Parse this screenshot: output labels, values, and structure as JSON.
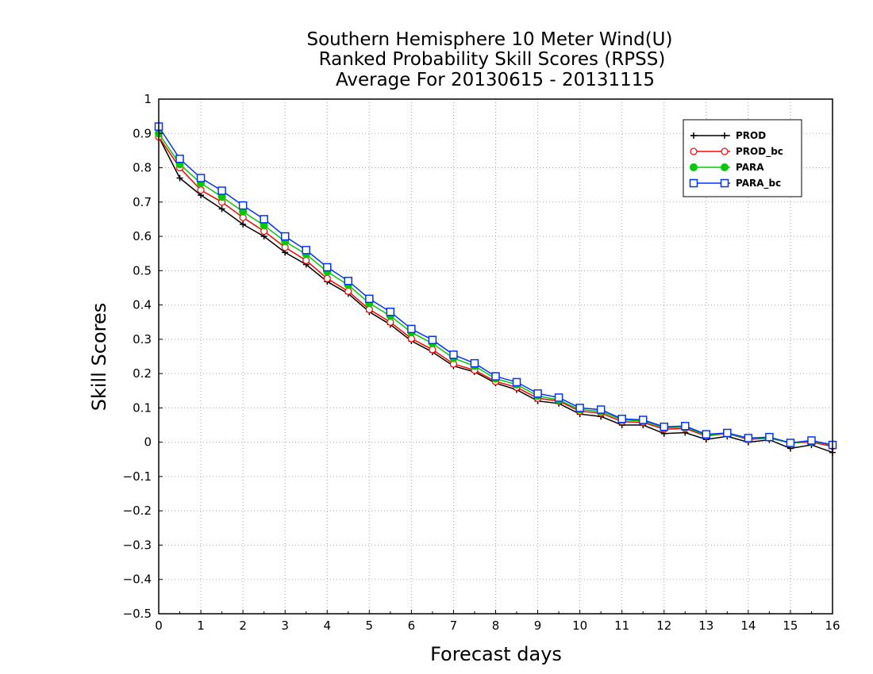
{
  "chart_data": {
    "type": "line",
    "title": [
      "Southern Hemisphere 10 Meter Wind(U)",
      "Ranked Probability Skill Scores (RPSS)",
      "Average For 20130615 - 20131115"
    ],
    "xlabel": "Forecast days",
    "ylabel": "Skill Scores",
    "xlim": [
      0,
      16
    ],
    "ylim": [
      -0.5,
      1
    ],
    "xticks": [
      0,
      1,
      2,
      3,
      4,
      5,
      6,
      7,
      8,
      9,
      10,
      11,
      12,
      13,
      14,
      15,
      16
    ],
    "yticks": [
      -0.5,
      -0.4,
      -0.3,
      -0.2,
      -0.1,
      0,
      0.1,
      0.2,
      0.3,
      0.4,
      0.5,
      0.6,
      0.7,
      0.8,
      0.9,
      1
    ],
    "ytick_labels": [
      "−0.5",
      "−0.4",
      "−0.3",
      "−0.2",
      "−0.1",
      "0",
      "0.1",
      "0.2",
      "0.3",
      "0.4",
      "0.5",
      "0.6",
      "0.7",
      "0.8",
      "0.9",
      "1"
    ],
    "grid": true,
    "legend_position": "top-right",
    "x": [
      0,
      0.5,
      1,
      1.5,
      2,
      2.5,
      3,
      3.5,
      4,
      4.5,
      5,
      5.5,
      6,
      6.5,
      7,
      7.5,
      8,
      8.5,
      9,
      9.5,
      10,
      10.5,
      11,
      11.5,
      12,
      12.5,
      13,
      13.5,
      14,
      14.5,
      15,
      15.5,
      16
    ],
    "series": [
      {
        "name": "PROD",
        "color": "#000000",
        "marker": "plus",
        "values": [
          0.89,
          0.77,
          0.72,
          0.68,
          0.635,
          0.6,
          0.553,
          0.518,
          0.468,
          0.433,
          0.38,
          0.343,
          0.295,
          0.263,
          0.222,
          0.205,
          0.172,
          0.153,
          0.12,
          0.113,
          0.082,
          0.075,
          0.05,
          0.05,
          0.025,
          0.028,
          0.008,
          0.017,
          0.0,
          0.007,
          -0.018,
          -0.008,
          -0.03
        ]
      },
      {
        "name": "PROD_bc",
        "color": "#ff0000",
        "marker": "circle-open",
        "values": [
          0.89,
          0.8,
          0.735,
          0.7,
          0.655,
          0.615,
          0.568,
          0.53,
          0.477,
          0.44,
          0.387,
          0.35,
          0.302,
          0.27,
          0.228,
          0.21,
          0.177,
          0.16,
          0.128,
          0.12,
          0.09,
          0.085,
          0.06,
          0.058,
          0.038,
          0.04,
          0.018,
          0.025,
          0.008,
          0.012,
          -0.002,
          0.0,
          -0.012
        ]
      },
      {
        "name": "PARA",
        "color": "#00cc00",
        "marker": "circle-filled",
        "values": [
          0.9,
          0.81,
          0.755,
          0.715,
          0.672,
          0.632,
          0.585,
          0.548,
          0.497,
          0.458,
          0.405,
          0.368,
          0.32,
          0.288,
          0.245,
          0.222,
          0.185,
          0.168,
          0.135,
          0.123,
          0.095,
          0.09,
          0.065,
          0.062,
          0.042,
          0.044,
          0.02,
          0.025,
          0.01,
          0.013,
          -0.003,
          0.003,
          -0.008
        ]
      },
      {
        "name": "PARA_bc",
        "color": "#0033ff",
        "marker": "square-open",
        "values": [
          0.92,
          0.826,
          0.77,
          0.733,
          0.69,
          0.65,
          0.6,
          0.56,
          0.51,
          0.47,
          0.418,
          0.38,
          0.33,
          0.298,
          0.255,
          0.23,
          0.192,
          0.175,
          0.142,
          0.13,
          0.1,
          0.095,
          0.068,
          0.065,
          0.045,
          0.047,
          0.023,
          0.027,
          0.012,
          0.015,
          -0.002,
          0.005,
          -0.008
        ]
      }
    ]
  }
}
